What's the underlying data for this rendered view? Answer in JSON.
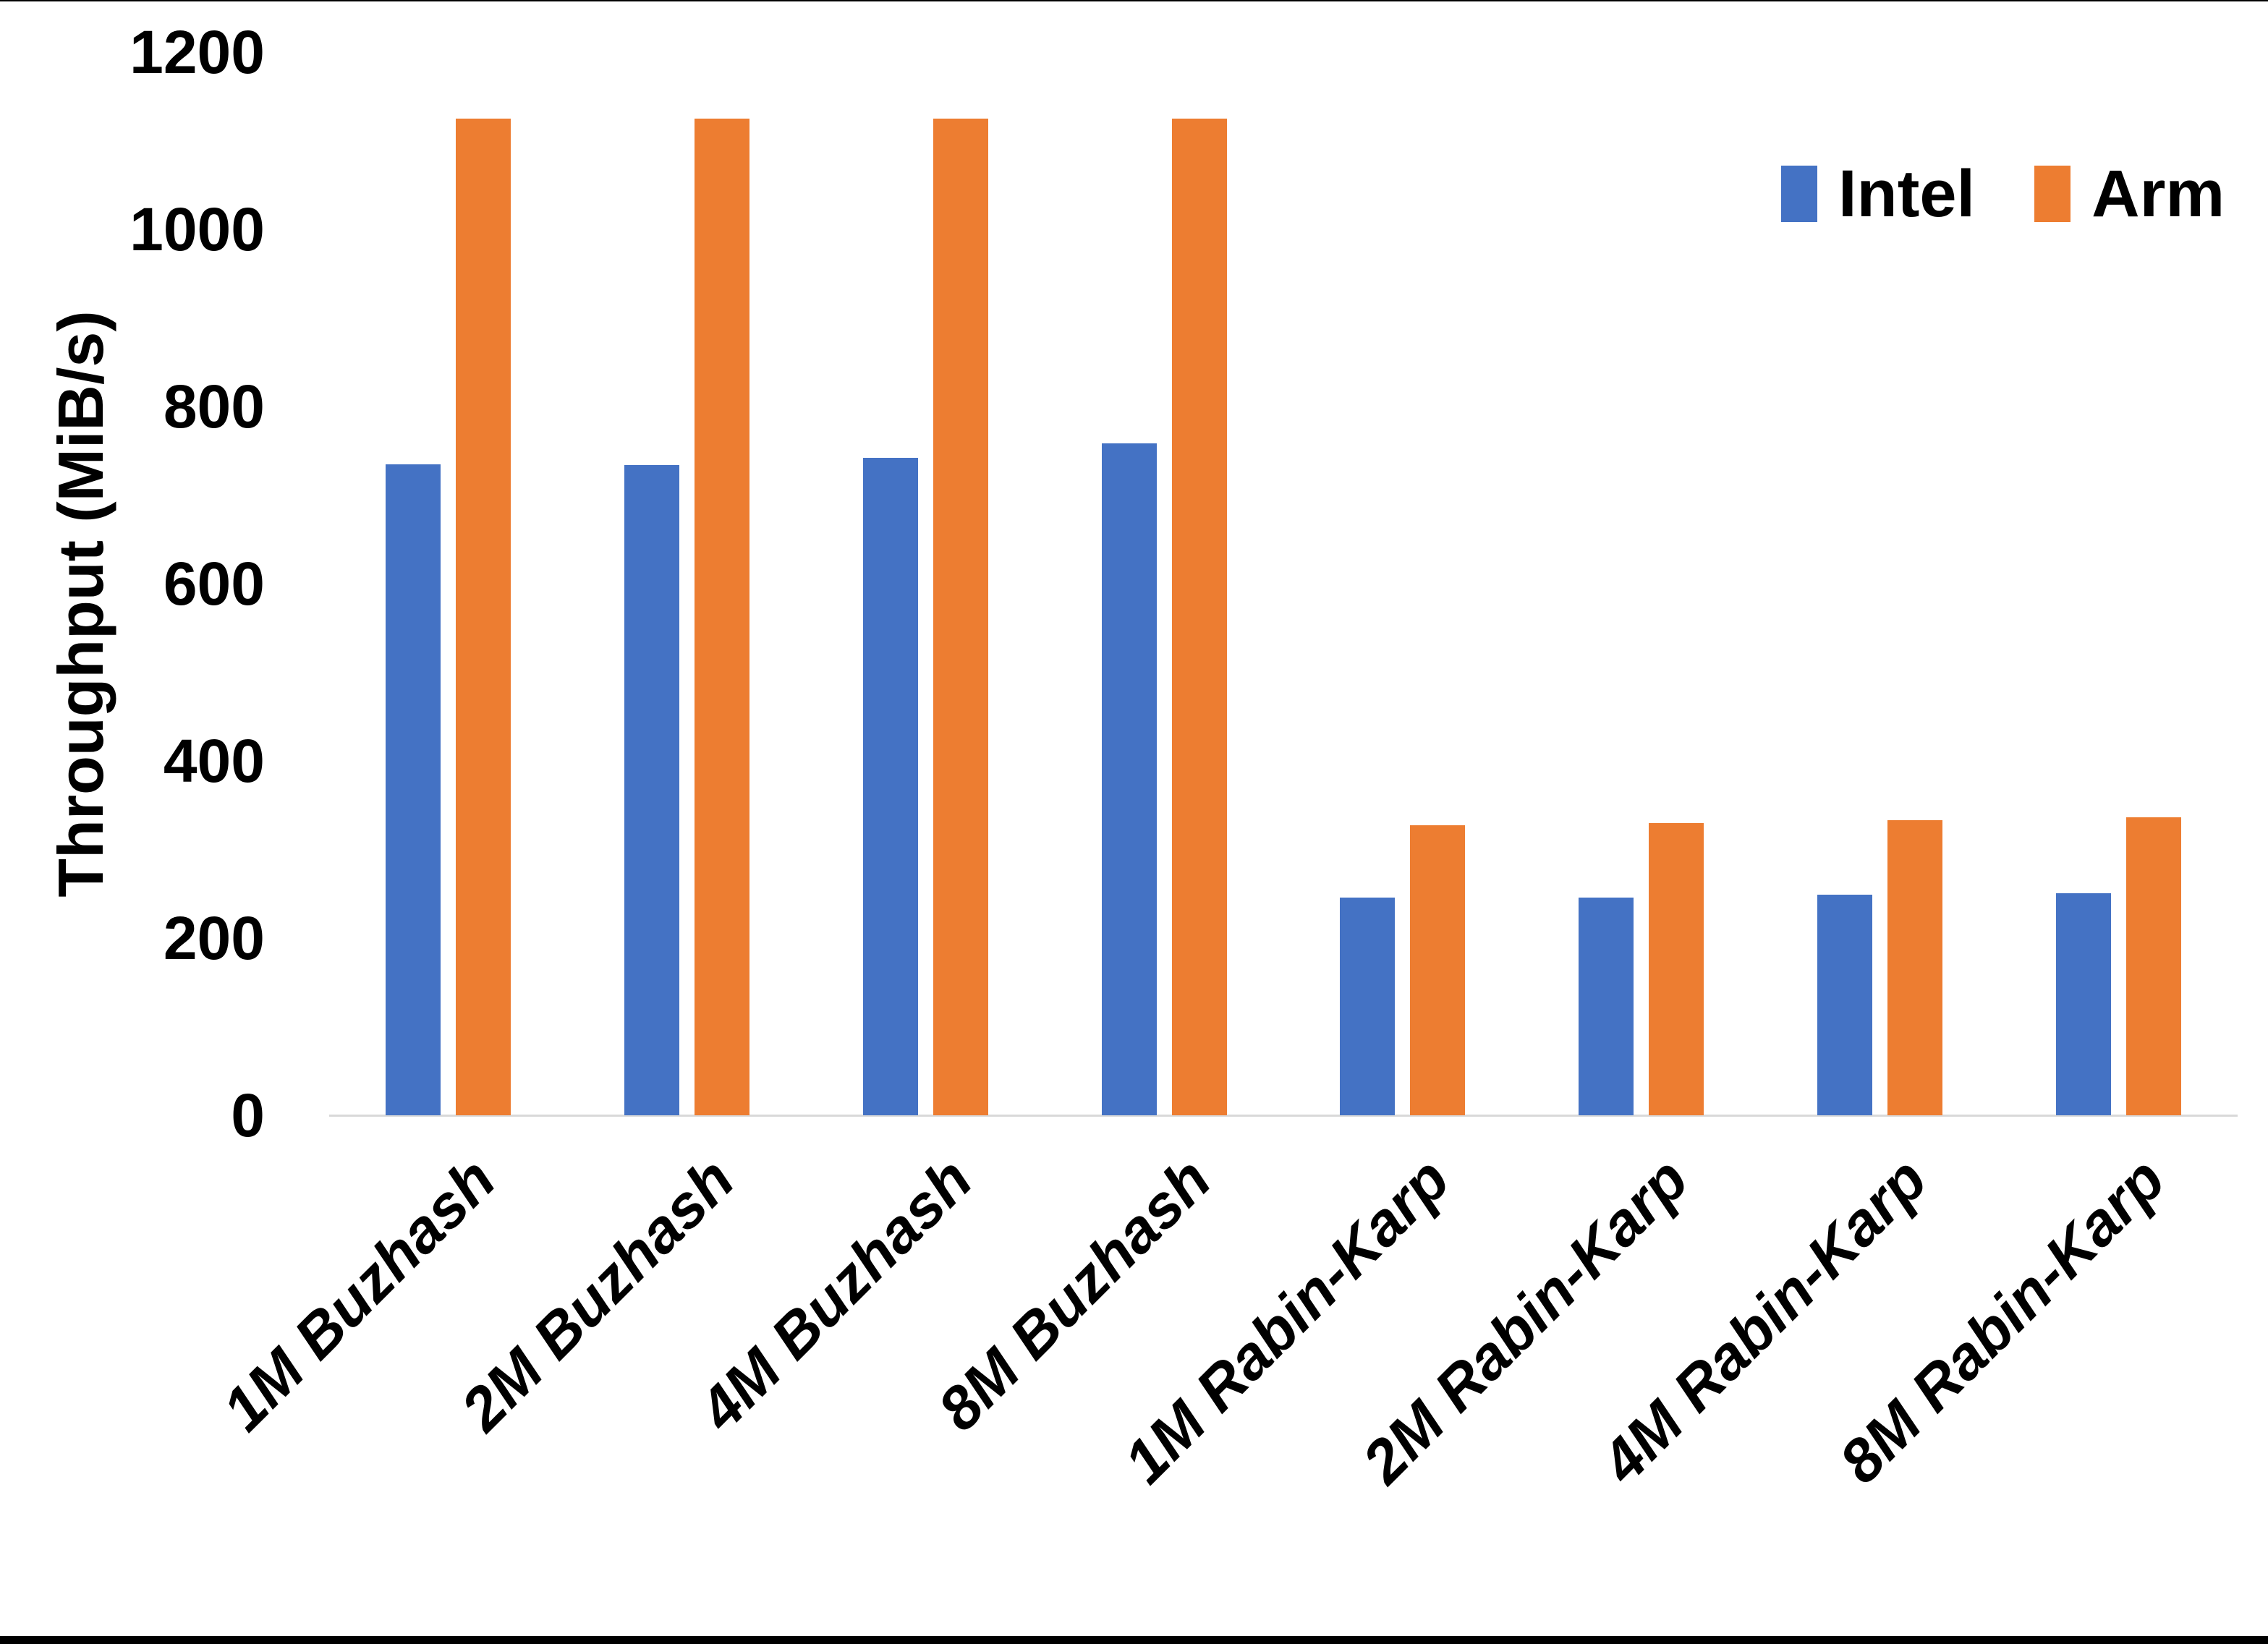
{
  "chart_data": {
    "type": "bar",
    "title": "",
    "xlabel": "",
    "ylabel": "Throughput (MiB/s)",
    "categories": [
      "1M Buzhash",
      "2M Buzhash",
      "4M Buzhash",
      "8M Buzhash",
      "1M Rabin-Karp",
      "2M Rabin-Karp",
      "4M Rabin-Karp",
      "8M Rabin-Karp"
    ],
    "series": [
      {
        "name": "Intel",
        "color": "#4472C4",
        "values": [
          735,
          734,
          742,
          758,
          246,
          246,
          249,
          251
        ]
      },
      {
        "name": "Arm",
        "color": "#ED7D31",
        "values": [
          1125,
          1125,
          1125,
          1125,
          327,
          330,
          333,
          336
        ]
      }
    ],
    "ylim": [
      0,
      1200
    ],
    "yticks": [
      0,
      200,
      400,
      600,
      800,
      1000,
      1200
    ],
    "grid": false,
    "legend_position": "top-right"
  },
  "style": {
    "axis_line_color": "#D9D9D9",
    "text_color": "#000000",
    "background_color": "#FFFFFF",
    "frame_color": "#000000"
  }
}
